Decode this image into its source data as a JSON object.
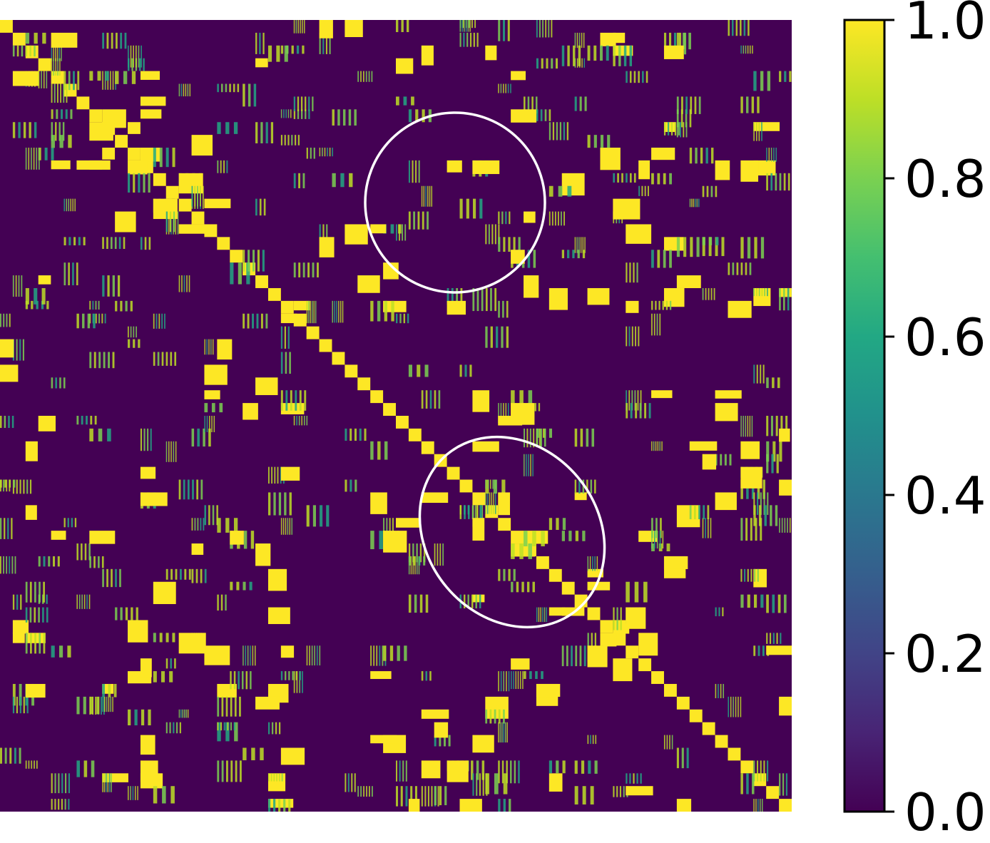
{
  "chart_data": {
    "type": "heatmap",
    "title": "",
    "xlabel": "",
    "ylabel": "",
    "colormap": "viridis",
    "colorbar": {
      "range": [
        0.0,
        1.0
      ],
      "ticks": [
        0.0,
        0.2,
        0.4,
        0.6,
        0.8,
        1.0
      ],
      "tick_labels": [
        "0.0",
        "0.2",
        "0.4",
        "0.6",
        "0.8",
        "1.0"
      ]
    },
    "matrix": {
      "description": "Symmetric similarity matrix with 1.0 on the diagonal and scattered yellow (1.0) blocks off-diagonal on a 0.0 (dark purple) background",
      "diagonal_value": 1.0,
      "background_value": 0.0,
      "highlighted_regions": [
        {
          "shape": "ellipse",
          "region": "upper-middle off-diagonal"
        },
        {
          "shape": "ellipse",
          "region": "central diagonal"
        }
      ]
    },
    "colors": {
      "low": "#440154",
      "high": "#fde725",
      "annotation_stroke": "#ffffff"
    }
  }
}
